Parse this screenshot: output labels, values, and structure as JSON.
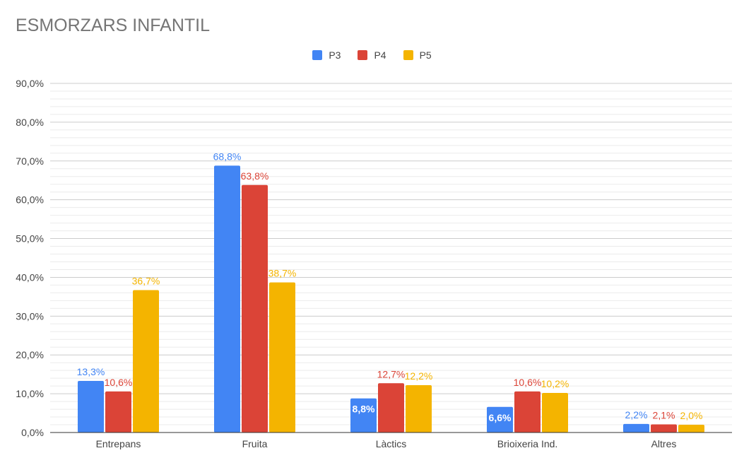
{
  "title": "ESMORZARS INFANTIL",
  "chart_data": {
    "type": "bar",
    "title": "ESMORZARS INFANTIL",
    "categories": [
      "Entrepans",
      "Fruita",
      "Làctics",
      "Brioixeria Ind.",
      "Altres"
    ],
    "series": [
      {
        "name": "P3",
        "color": "#4285f4",
        "values": [
          13.3,
          68.8,
          8.8,
          6.6,
          2.2
        ],
        "labels": [
          "13,3%",
          "68,8%",
          "8,8%",
          "6,6%",
          "2,2%"
        ]
      },
      {
        "name": "P4",
        "color": "#db4437",
        "values": [
          10.6,
          63.8,
          12.7,
          10.6,
          2.1
        ],
        "labels": [
          "10,6%",
          "63,8%",
          "12,7%",
          "10,6%",
          "2,1%"
        ]
      },
      {
        "name": "P5",
        "color": "#f4b400",
        "values": [
          36.7,
          38.7,
          12.2,
          10.2,
          2.0
        ],
        "labels": [
          "36,7%",
          "38,7%",
          "12,2%",
          "10,2%",
          "2,0%"
        ]
      }
    ],
    "yticks": [
      0,
      10,
      20,
      30,
      40,
      50,
      60,
      70,
      80,
      90
    ],
    "ytick_labels": [
      "0,0%",
      "10,0%",
      "20,0%",
      "30,0%",
      "40,0%",
      "50,0%",
      "60,0%",
      "70,0%",
      "80,0%",
      "90,0%"
    ],
    "ylim": [
      0,
      90
    ],
    "minor_grid_step": 2,
    "legend_position": "top-center",
    "grid": true,
    "xlabel": "",
    "ylabel": ""
  }
}
